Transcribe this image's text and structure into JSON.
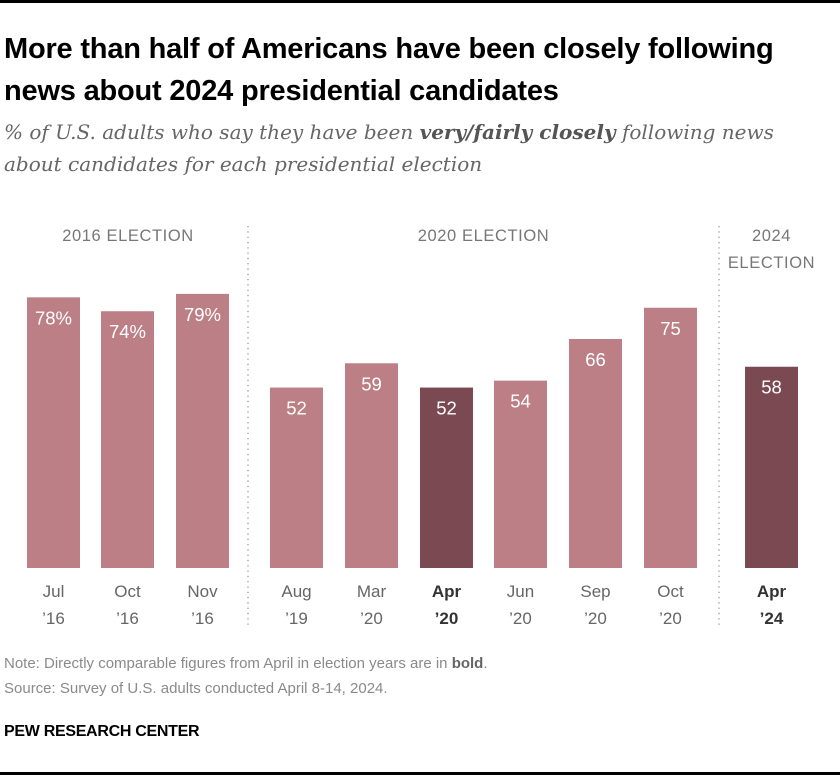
{
  "title": "More than half of Americans have been closely following news about 2024 presidential candidates",
  "subtitle": {
    "before": "% of U.S. adults who say they have been ",
    "emphasis": "very/fairly closely",
    "after": " following news about candidates for each presidential election"
  },
  "note": {
    "before": "Note: Directly comparable figures from April in election years are in ",
    "bold": "bold",
    "after": "."
  },
  "source": "Source: Survey of U.S. adults conducted April 8-14, 2024.",
  "brand": "PEW RESEARCH CENTER",
  "colors": {
    "bar": "#bc7f86",
    "highlight": "#7b4952",
    "group_label": "#777777",
    "axis_label": "#666666"
  },
  "chart_data": {
    "type": "bar",
    "ylim": [
      0,
      100
    ],
    "grid": false,
    "groups": [
      {
        "label": [
          "2016 ELECTION"
        ],
        "bars": [
          0,
          1,
          2
        ]
      },
      {
        "label": [
          "2020 ELECTION"
        ],
        "bars": [
          3,
          4,
          5,
          6,
          7,
          8
        ]
      },
      {
        "label": [
          "2024",
          "ELECTION"
        ],
        "bars": [
          9
        ]
      }
    ],
    "categories": [
      [
        "Jul",
        "’16"
      ],
      [
        "Oct",
        "’16"
      ],
      [
        "Nov",
        "’16"
      ],
      [
        "Aug",
        "’19"
      ],
      [
        "Mar",
        "’20"
      ],
      [
        "Apr",
        "’20"
      ],
      [
        "Jun",
        "’20"
      ],
      [
        "Sep",
        "’20"
      ],
      [
        "Oct",
        "’20"
      ],
      [
        "Apr",
        "’24"
      ]
    ],
    "values": [
      78,
      74,
      79,
      52,
      59,
      52,
      54,
      66,
      75,
      58
    ],
    "data_labels": [
      "78%",
      "74%",
      "79%",
      "52",
      "59",
      "52",
      "54",
      "66",
      "75",
      "58"
    ],
    "highlighted": [
      false,
      false,
      false,
      false,
      false,
      true,
      false,
      false,
      false,
      true
    ]
  }
}
